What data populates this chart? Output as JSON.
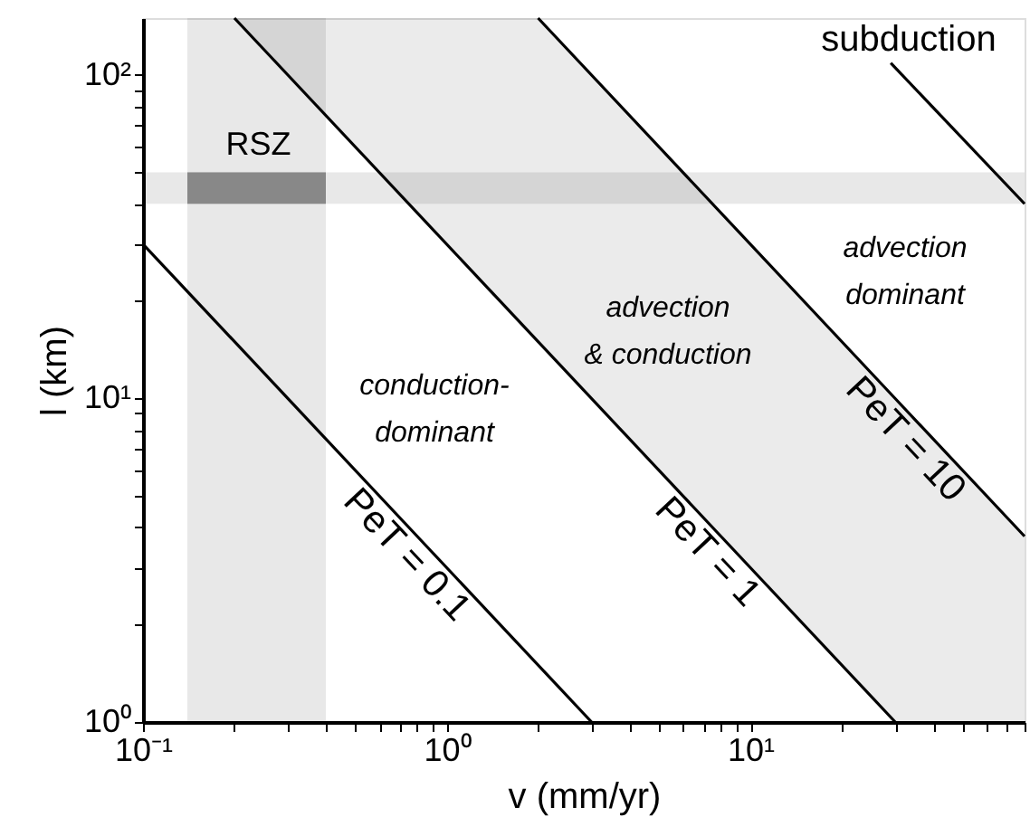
{
  "chart_data": {
    "type": "line",
    "xlabel": "v  (mm/yr)",
    "ylabel": "l  (km)",
    "log": "xy",
    "grid": false,
    "xlim": [
      0.1,
      80
    ],
    "ylim": [
      1,
      150
    ],
    "xticks": [
      {
        "value": 0.1,
        "label": "10⁻¹"
      },
      {
        "value": 0.2,
        "label": null
      },
      {
        "value": 0.3,
        "label": null
      },
      {
        "value": 0.4,
        "label": null
      },
      {
        "value": 0.5,
        "label": null
      },
      {
        "value": 0.6,
        "label": null
      },
      {
        "value": 0.7,
        "label": null
      },
      {
        "value": 0.8,
        "label": null
      },
      {
        "value": 0.9,
        "label": null
      },
      {
        "value": 1,
        "label": "10⁰"
      },
      {
        "value": 2,
        "label": null
      },
      {
        "value": 3,
        "label": null
      },
      {
        "value": 4,
        "label": null
      },
      {
        "value": 5,
        "label": null
      },
      {
        "value": 6,
        "label": null
      },
      {
        "value": 7,
        "label": null
      },
      {
        "value": 8,
        "label": null
      },
      {
        "value": 9,
        "label": null
      },
      {
        "value": 10,
        "label": "10¹"
      },
      {
        "value": 20,
        "label": null
      },
      {
        "value": 30,
        "label": null
      },
      {
        "value": 40,
        "label": null
      },
      {
        "value": 50,
        "label": null
      },
      {
        "value": 60,
        "label": null
      },
      {
        "value": 70,
        "label": null
      },
      {
        "value": 80,
        "label": null
      }
    ],
    "yticks": [
      {
        "value": 1,
        "label": "10⁰"
      },
      {
        "value": 2,
        "label": null
      },
      {
        "value": 3,
        "label": null
      },
      {
        "value": 4,
        "label": null
      },
      {
        "value": 5,
        "label": null
      },
      {
        "value": 6,
        "label": null
      },
      {
        "value": 7,
        "label": null
      },
      {
        "value": 8,
        "label": null
      },
      {
        "value": 9,
        "label": null
      },
      {
        "value": 10,
        "label": "10¹"
      },
      {
        "value": 20,
        "label": null
      },
      {
        "value": 30,
        "label": null
      },
      {
        "value": 40,
        "label": null
      },
      {
        "value": 50,
        "label": null
      },
      {
        "value": 60,
        "label": null
      },
      {
        "value": 70,
        "label": null
      },
      {
        "value": 80,
        "label": null
      },
      {
        "value": 90,
        "label": null
      },
      {
        "value": 100,
        "label": "10²"
      }
    ],
    "bands": [
      {
        "axis": "x",
        "from": 0.14,
        "to": 0.4,
        "color": "#e8e8e8"
      },
      {
        "axis": "y",
        "from": 40,
        "to": 50,
        "color": "#e8e8e8"
      }
    ],
    "series": [
      {
        "color": "#888888",
        "x": [
          0.14,
          0.4
        ],
        "values": [
          null,
          null
        ],
        "lower": [
          40,
          40
        ],
        "upper": [
          50,
          50
        ]
      },
      {
        "color": "#000000",
        "x": [
          0.1,
          3
        ],
        "values": [
          30,
          1
        ]
      },
      {
        "color": "#000000",
        "x": [
          0.2,
          30
        ],
        "values": [
          150,
          1
        ]
      },
      {
        "color": "#000000",
        "x": [
          0.2,
          2,
          30,
          80
        ],
        "values": [
          null,
          150,
          10,
          3.75
        ],
        "lower": [
          150,
          15,
          1,
          1
        ],
        "upper": [
          150,
          150,
          10,
          3.75
        ]
      },
      {
        "color": "#000000",
        "x": [
          29,
          80
        ],
        "values": [
          109,
          40
        ]
      }
    ],
    "annotations": [
      {
        "text": "PeT = 0.1",
        "x": 0.93,
        "y": 3.23
      },
      {
        "text": "PeT = 1",
        "x": 9.1,
        "y": 3.3
      },
      {
        "text": "PeT = 10",
        "x": 40.8,
        "y": 7.35
      },
      "conduction-\ndominant",
      "advection\n& conduction",
      "advection\ndominant",
      "subduction",
      {
        "text": "RSZ",
        "x": 0.24,
        "y": 50
      }
    ]
  }
}
